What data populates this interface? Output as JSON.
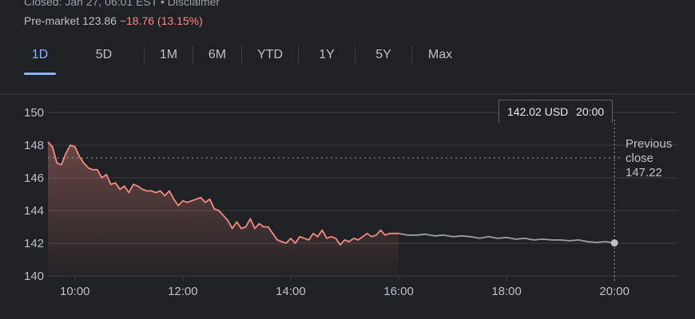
{
  "header": {
    "status": "Closed: Jan 27, 06:01 EST • Disclaimer",
    "premarket_label": "Pre-market",
    "premarket_price": "123.86",
    "premarket_change": "−18.76 (13.15%)"
  },
  "range_tabs": [
    "1D",
    "5D",
    "1M",
    "6M",
    "YTD",
    "1Y",
    "5Y",
    "Max"
  ],
  "active_tab": "1D",
  "tooltip": {
    "price": "142.02 USD",
    "time": "20:00"
  },
  "previous_close": {
    "line1": "Previous",
    "line2": "close",
    "value": "147.22"
  },
  "colors": {
    "background": "#202124",
    "down_line": "#f28b82",
    "after_hours_line": "#9aa0a6",
    "grid": "#3c4043",
    "active_tab": "#8ab4f8"
  },
  "chart_data": {
    "type": "line",
    "title": "",
    "xlabel": "",
    "ylabel": "",
    "ylim": [
      140,
      150
    ],
    "yticks": [
      140,
      142,
      144,
      146,
      148,
      150
    ],
    "xlim": [
      "09:30",
      "21:10"
    ],
    "xtick_labels": [
      "10:00",
      "12:00",
      "14:00",
      "16:00",
      "18:00",
      "20:00"
    ],
    "grid": true,
    "previous_close": 147.22,
    "series": [
      {
        "session": "regular",
        "x": [
          "09:30",
          "09:35",
          "09:40",
          "09:45",
          "09:50",
          "09:55",
          "10:00",
          "10:05",
          "10:10",
          "10:15",
          "10:20",
          "10:25",
          "10:30",
          "10:35",
          "10:40",
          "10:45",
          "10:50",
          "10:55",
          "11:00",
          "11:05",
          "11:10",
          "11:15",
          "11:20",
          "11:25",
          "11:30",
          "11:35",
          "11:40",
          "11:45",
          "11:50",
          "11:55",
          "12:00",
          "12:05",
          "12:10",
          "12:15",
          "12:20",
          "12:25",
          "12:30",
          "12:35",
          "12:40",
          "12:45",
          "12:50",
          "12:55",
          "13:00",
          "13:05",
          "13:10",
          "13:15",
          "13:20",
          "13:25",
          "13:30",
          "13:35",
          "13:40",
          "13:45",
          "13:50",
          "13:55",
          "14:00",
          "14:05",
          "14:10",
          "14:15",
          "14:20",
          "14:25",
          "14:30",
          "14:35",
          "14:40",
          "14:45",
          "14:50",
          "14:55",
          "15:00",
          "15:05",
          "15:10",
          "15:15",
          "15:20",
          "15:25",
          "15:30",
          "15:35",
          "15:40",
          "15:45",
          "15:50",
          "15:55",
          "16:00"
        ],
        "y": [
          148.2,
          147.9,
          146.9,
          146.8,
          147.5,
          148.0,
          147.9,
          147.3,
          146.9,
          146.6,
          146.5,
          146.5,
          146.0,
          146.2,
          145.6,
          145.7,
          145.3,
          145.5,
          145.1,
          145.6,
          145.5,
          145.3,
          145.2,
          145.2,
          145.1,
          145.2,
          144.9,
          145.2,
          144.7,
          144.3,
          144.6,
          144.5,
          144.6,
          144.7,
          144.8,
          144.5,
          144.7,
          144.1,
          144.0,
          143.7,
          143.4,
          142.9,
          143.3,
          142.9,
          143.0,
          143.5,
          142.9,
          143.2,
          143.0,
          143.0,
          142.6,
          142.2,
          142.1,
          142.0,
          142.3,
          142.0,
          142.4,
          142.3,
          142.2,
          142.6,
          142.4,
          142.8,
          142.3,
          142.4,
          142.3,
          141.9,
          142.2,
          142.1,
          142.3,
          142.2,
          142.4,
          142.6,
          142.4,
          142.5,
          142.8,
          142.5,
          142.6,
          142.6,
          142.6
        ]
      },
      {
        "session": "after-hours",
        "x": [
          "16:00",
          "16:10",
          "16:20",
          "16:30",
          "16:40",
          "16:50",
          "17:00",
          "17:10",
          "17:20",
          "17:30",
          "17:40",
          "17:50",
          "18:00",
          "18:10",
          "18:20",
          "18:30",
          "18:40",
          "18:50",
          "19:00",
          "19:10",
          "19:20",
          "19:30",
          "19:40",
          "19:50",
          "20:00"
        ],
        "y": [
          142.6,
          142.5,
          142.5,
          142.55,
          142.45,
          142.5,
          142.4,
          142.45,
          142.4,
          142.3,
          142.4,
          142.3,
          142.35,
          142.25,
          142.3,
          142.2,
          142.25,
          142.2,
          142.2,
          142.15,
          142.2,
          142.1,
          142.05,
          142.1,
          142.02
        ]
      }
    ]
  }
}
